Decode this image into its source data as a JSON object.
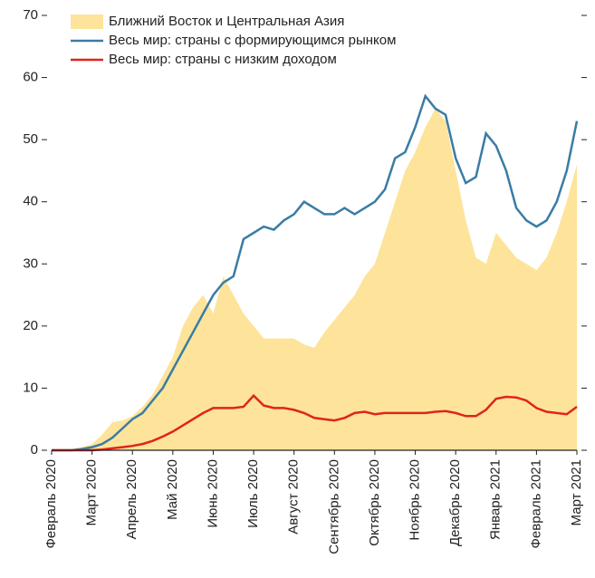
{
  "chart_data": {
    "type": "line",
    "categories": [
      "Февраль 2020",
      null,
      null,
      null,
      "Март 2020",
      null,
      null,
      null,
      "Апрель 2020",
      null,
      null,
      null,
      "Май 2020",
      null,
      null,
      null,
      "Июнь 2020",
      null,
      null,
      null,
      "Июль 2020",
      null,
      null,
      null,
      "Август 2020",
      null,
      null,
      null,
      "Сентябрь 2020",
      null,
      null,
      null,
      "Октябрь 2020",
      null,
      null,
      null,
      "Ноябрь 2020",
      null,
      null,
      null,
      "Декабрь 2020",
      null,
      null,
      null,
      "Январь 2021",
      null,
      null,
      null,
      "Февраль 2021",
      null,
      null,
      null,
      "Март 2021"
    ],
    "series": [
      {
        "name": "Ближний Восток и Центральная Азия",
        "type": "area",
        "color": "#fde49a",
        "values": [
          0,
          0,
          0.2,
          0.5,
          1,
          2.5,
          4.5,
          4.8,
          5.5,
          7,
          9,
          12,
          15,
          20,
          23,
          25,
          22,
          28,
          25,
          22,
          20,
          18,
          18,
          18,
          18,
          17,
          16.5,
          19,
          21,
          23,
          25,
          28,
          30,
          35,
          40,
          45,
          48,
          52,
          55,
          53,
          45,
          37,
          31,
          30,
          35,
          33,
          31,
          30,
          29,
          31,
          35,
          40,
          46
        ]
      },
      {
        "name": "Весь мир: страны с формирующимся рынком",
        "type": "line",
        "color": "#3a7ca5",
        "values": [
          0,
          0,
          0,
          0.2,
          0.5,
          1,
          2,
          3.5,
          5,
          6,
          8,
          10,
          13,
          16,
          19,
          22,
          25,
          27,
          28,
          34,
          35,
          36,
          35.5,
          37,
          38,
          40,
          39,
          38,
          38,
          39,
          38,
          39,
          40,
          42,
          47,
          48,
          52,
          57,
          55,
          54,
          47,
          43,
          44,
          51,
          49,
          45,
          39,
          37,
          36,
          37,
          40,
          45,
          53
        ]
      },
      {
        "name": "Весь мир: страны с низким доходом",
        "type": "line",
        "color": "#e0241b",
        "values": [
          0,
          0,
          0,
          0,
          0,
          0.1,
          0.3,
          0.5,
          0.7,
          1,
          1.5,
          2.2,
          3,
          4,
          5,
          6,
          6.8,
          6.8,
          6.8,
          7,
          8.8,
          7.2,
          6.8,
          6.8,
          6.5,
          6,
          5.2,
          5,
          4.8,
          5.2,
          6,
          6.2,
          5.8,
          6,
          6,
          6,
          6,
          6,
          6.2,
          6.3,
          6,
          5.5,
          5.5,
          6.5,
          8.3,
          8.6,
          8.5,
          8,
          6.8,
          6.2,
          6,
          5.8,
          7
        ]
      }
    ],
    "ylim": [
      0,
      70
    ],
    "yticks": [
      0,
      10,
      20,
      30,
      40,
      50,
      60,
      70
    ]
  }
}
